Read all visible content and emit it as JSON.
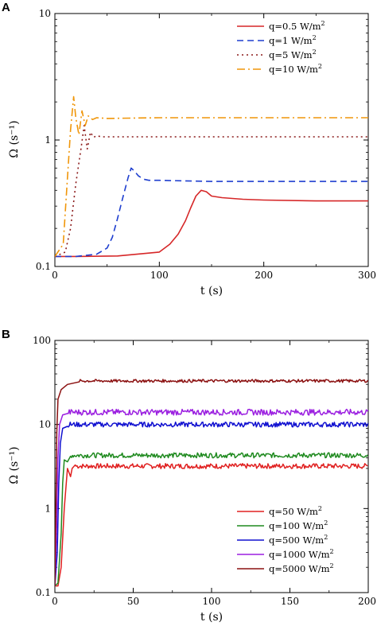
{
  "chart_data": [
    {
      "panel": "A",
      "type": "line",
      "xlabel": "t (s)",
      "ylabel": "Ω (s⁻¹)",
      "xlim": [
        0,
        300
      ],
      "ylim": [
        0.1,
        10
      ],
      "yscale": "log",
      "xticks": [
        "0",
        "100",
        "200",
        "300"
      ],
      "yticks": [
        "0.1",
        "1",
        "10"
      ],
      "legend_position": "top-right",
      "series": [
        {
          "name": "q=0.5 W/m2",
          "label": "q=0.5 W/m",
          "sup": "2",
          "color": "#d62728",
          "dash": "solid",
          "x": [
            0,
            20,
            60,
            100,
            110,
            118,
            125,
            130,
            135,
            140,
            145,
            150,
            160,
            180,
            200,
            250,
            300
          ],
          "y": [
            0.12,
            0.12,
            0.121,
            0.13,
            0.15,
            0.18,
            0.23,
            0.29,
            0.36,
            0.4,
            0.39,
            0.36,
            0.35,
            0.34,
            0.335,
            0.33,
            0.33
          ]
        },
        {
          "name": "q=1 W/m2",
          "label": "q=1 W/m",
          "sup": "2",
          "color": "#1f3fcf",
          "dash": "8,5",
          "x": [
            0,
            20,
            40,
            50,
            55,
            60,
            65,
            70,
            73,
            76,
            80,
            85,
            90,
            100,
            150,
            200,
            300
          ],
          "y": [
            0.12,
            0.12,
            0.125,
            0.14,
            0.17,
            0.24,
            0.35,
            0.5,
            0.6,
            0.57,
            0.52,
            0.49,
            0.48,
            0.48,
            0.47,
            0.47,
            0.47
          ]
        },
        {
          "name": "q=5 W/m2",
          "label": "q=5 W/m",
          "sup": "2",
          "color": "#8b1a1a",
          "dash": "2,4",
          "x": [
            0,
            10,
            15,
            20,
            25,
            28,
            31,
            34,
            37,
            40,
            45,
            60,
            100,
            200,
            300
          ],
          "y": [
            0.12,
            0.13,
            0.2,
            0.45,
            0.85,
            1.3,
            0.85,
            1.15,
            1.05,
            1.08,
            1.06,
            1.06,
            1.06,
            1.06,
            1.06
          ]
        },
        {
          "name": "q=10 W/m2",
          "label": "q=10 W/m",
          "sup": "2",
          "color": "#f0960a",
          "dash": "10,4,2,4",
          "x": [
            0,
            8,
            12,
            15,
            18,
            20,
            23,
            26,
            29,
            32,
            36,
            40,
            50,
            100,
            200,
            300
          ],
          "y": [
            0.12,
            0.15,
            0.5,
            1.2,
            2.2,
            1.5,
            1.1,
            1.7,
            1.3,
            1.55,
            1.45,
            1.5,
            1.48,
            1.5,
            1.5,
            1.5
          ]
        }
      ]
    },
    {
      "panel": "B",
      "type": "line",
      "xlabel": "t (s)",
      "ylabel": "Ω (s⁻¹)",
      "xlim": [
        0,
        200
      ],
      "ylim": [
        0.1,
        100
      ],
      "yscale": "log",
      "xticks": [
        "0",
        "50",
        "100",
        "150",
        "200"
      ],
      "yticks": [
        "0.1",
        "1",
        "10",
        "100"
      ],
      "legend_position": "bottom-right",
      "series": [
        {
          "name": "q=50 W/m2",
          "label": "q=50 W/m",
          "sup": "2",
          "color": "#e02020",
          "rise": [
            [
              0,
              0.12
            ],
            [
              2,
              0.12
            ],
            [
              4,
              0.2
            ],
            [
              6,
              1.0
            ],
            [
              8,
              3.0
            ],
            [
              10,
              2.4
            ],
            [
              11,
              3.0
            ],
            [
              13,
              3.3
            ]
          ],
          "level": 3.2,
          "noise": 0.06
        },
        {
          "name": "q=100 W/m2",
          "label": "q=100 W/m",
          "sup": "2",
          "color": "#1f8a1f",
          "rise": [
            [
              0,
              0.12
            ],
            [
              2,
              0.13
            ],
            [
              4,
              0.5
            ],
            [
              5,
              2.0
            ],
            [
              6,
              3.8
            ],
            [
              8,
              3.6
            ],
            [
              10,
              4.2
            ]
          ],
          "level": 4.3,
          "noise": 0.06
        },
        {
          "name": "q=500 W/m2",
          "label": "q=500 W/m",
          "sup": "2",
          "color": "#1010d0",
          "rise": [
            [
              0,
              0.12
            ],
            [
              1.5,
              0.3
            ],
            [
              2.5,
              2.0
            ],
            [
              3.5,
              6.0
            ],
            [
              5,
              9.0
            ],
            [
              8,
              9.5
            ]
          ],
          "level": 10,
          "noise": 0.06
        },
        {
          "name": "q=1000 W/m2",
          "label": "q=1000 W/m",
          "sup": "2",
          "color": "#9b1fe0",
          "rise": [
            [
              0,
              0.12
            ],
            [
              1,
              0.5
            ],
            [
              2,
              4.0
            ],
            [
              3,
              10.0
            ],
            [
              5,
              13.0
            ],
            [
              8,
              13.5
            ]
          ],
          "level": 14,
          "noise": 0.07
        },
        {
          "name": "q=5000 W/m2",
          "label": "q=5000 W/m",
          "sup": "2",
          "color": "#8b1010",
          "rise": [
            [
              0,
              0.12
            ],
            [
              0.6,
              1.0
            ],
            [
              1.2,
              8.0
            ],
            [
              2,
              20.0
            ],
            [
              4,
              26.0
            ],
            [
              8,
              30.0
            ],
            [
              15,
              32.0
            ]
          ],
          "level": 33,
          "noise": 0.035
        }
      ]
    }
  ]
}
